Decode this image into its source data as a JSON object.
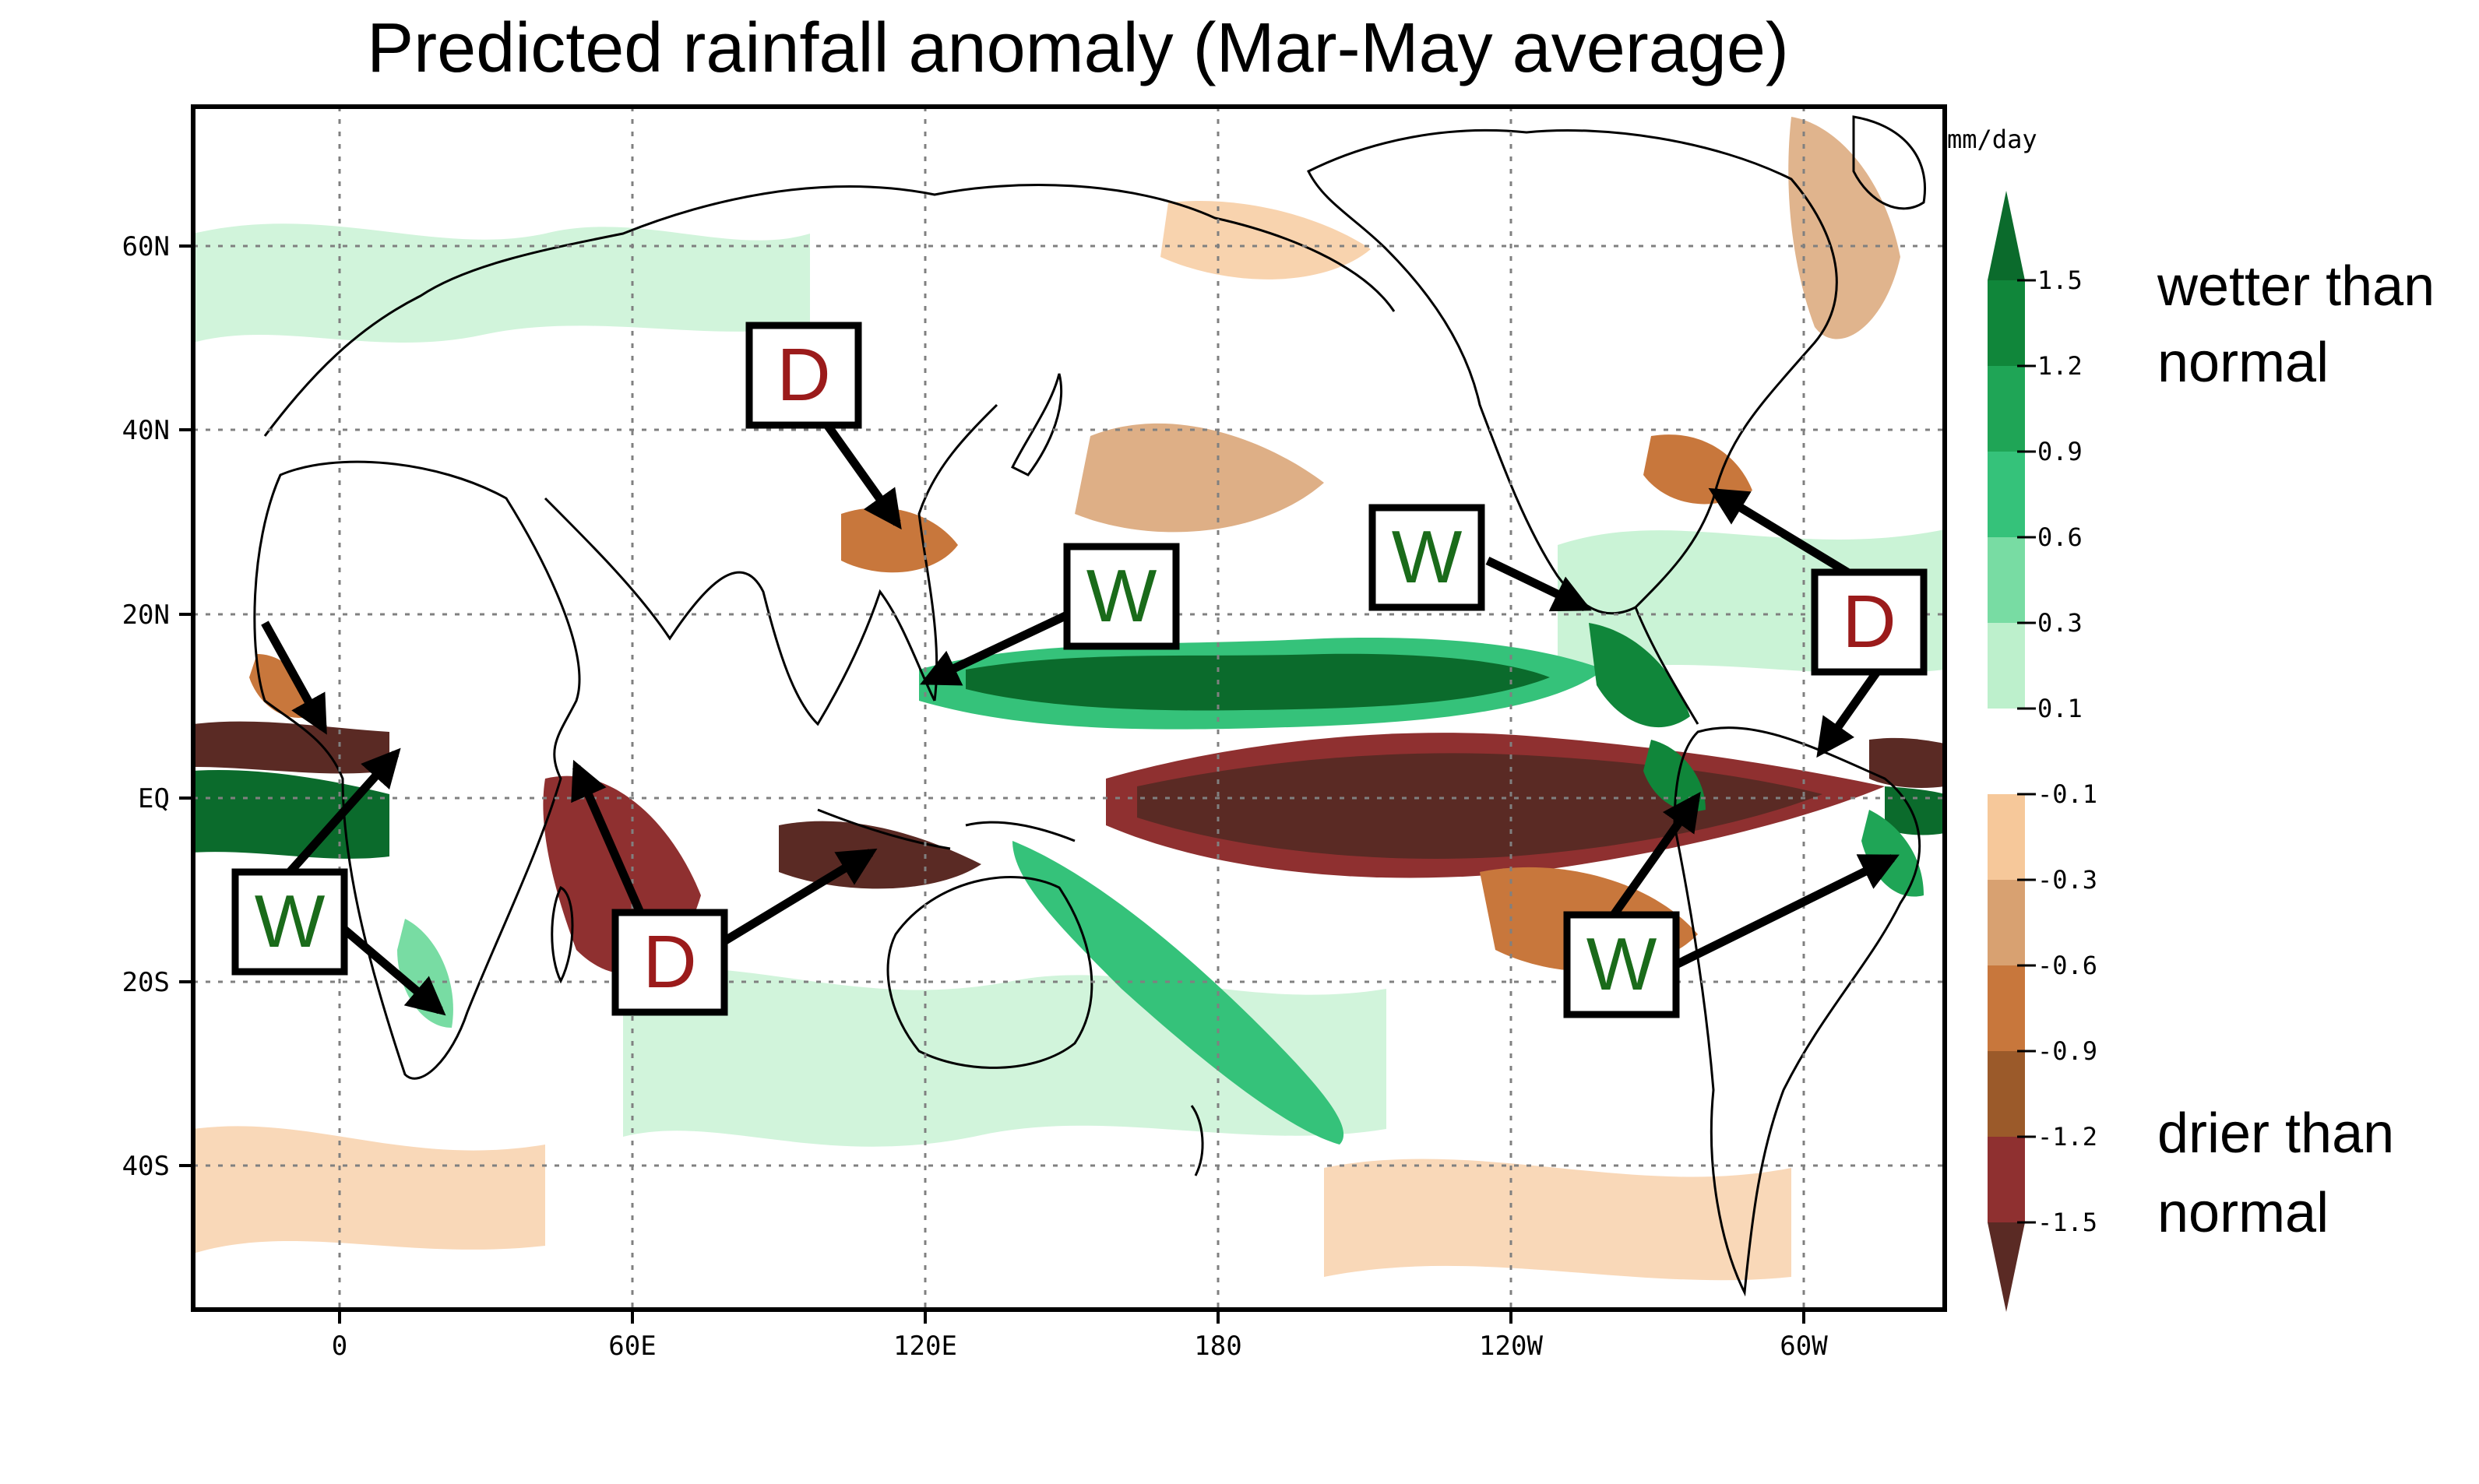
{
  "title": "Predicted rainfall anomaly (Mar-May average)",
  "map": {
    "lat_ticks": [
      "60N",
      "40N",
      "20N",
      "EQ",
      "20S",
      "40S"
    ],
    "lon_ticks": [
      "0",
      "60E",
      "120E",
      "180",
      "120W",
      "60W"
    ]
  },
  "colorbar": {
    "unit": "mm/day",
    "labels": [
      "1.5",
      "1.2",
      "0.9",
      "0.6",
      "0.3",
      "0.1",
      "-0.1",
      "-0.3",
      "-0.6",
      "-0.9",
      "-1.2",
      "-1.5"
    ],
    "colors": [
      "#0b6b2c",
      "#10863a",
      "#1fa556",
      "#35c27a",
      "#78dca3",
      "#bdf0cc",
      "#ffffff",
      "#f6c89a",
      "#d8a171",
      "#c8773c",
      "#9b5a2a",
      "#8f3030",
      "#5a2a24"
    ],
    "wet_label_1": "wetter than",
    "wet_label_2": "normal",
    "dry_label_1": "drier than",
    "dry_label_2": "normal"
  },
  "annotations": [
    {
      "letter": "D",
      "meaning": "dry"
    },
    {
      "letter": "W",
      "meaning": "wet"
    }
  ],
  "styles": {
    "dry_letter_color": "#9b1b1b",
    "wet_letter_color": "#1a6b1a"
  }
}
